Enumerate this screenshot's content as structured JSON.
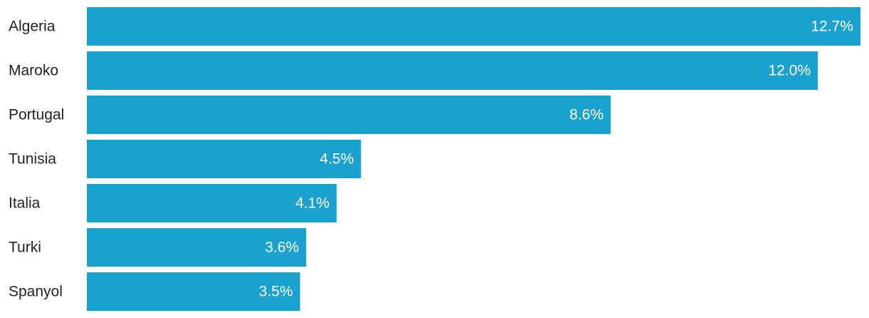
{
  "chart_data": {
    "type": "bar",
    "orientation": "horizontal",
    "categories": [
      "Algeria",
      "Maroko",
      "Portugal",
      "Tunisia",
      "Italia",
      "Turki",
      "Spanyol"
    ],
    "values": [
      12.7,
      12.0,
      8.6,
      4.5,
      4.1,
      3.6,
      3.5
    ],
    "value_labels": [
      "12.7%",
      "12.0%",
      "8.6%",
      "4.5%",
      "4.1%",
      "3.6%",
      "3.5%"
    ],
    "color": "#1ba1cf"
  }
}
